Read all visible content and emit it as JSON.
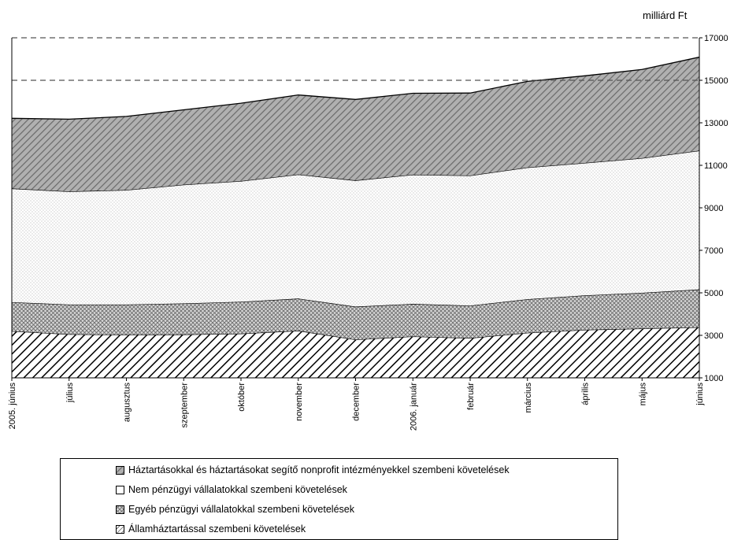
{
  "chart_data": {
    "type": "area",
    "stacked": true,
    "unit_label": "milliárd Ft",
    "categories": [
      "2005. június",
      "július",
      "augusztus",
      "szeptember",
      "október",
      "november",
      "december",
      "2006. január",
      "február",
      "március",
      "április",
      "május",
      "június"
    ],
    "ylim": [
      1000,
      17000
    ],
    "yticks": [
      1000,
      3000,
      5000,
      7000,
      9000,
      11000,
      13000,
      15000,
      17000
    ],
    "reference_lines": [
      15000,
      17000
    ],
    "grid": false,
    "legend_position": "bottom",
    "series": [
      {
        "name": "Államháztartással szembeni követelések",
        "values": [
          3200,
          3050,
          3030,
          3040,
          3080,
          3220,
          2800,
          2950,
          2870,
          3120,
          3260,
          3320,
          3380
        ],
        "pattern": "diag-wide",
        "color": "#ffffff"
      },
      {
        "name": "Egyéb pénzügyi vállalatokkal szembeni követelések",
        "values": [
          1360,
          1400,
          1420,
          1460,
          1500,
          1510,
          1550,
          1530,
          1530,
          1580,
          1620,
          1680,
          1780
        ],
        "pattern": "crosshatch",
        "color": "#d0d0d0"
      },
      {
        "name": "Nem pénzügyi vállalatokkal szembeni követelések",
        "values": [
          5350,
          5320,
          5390,
          5590,
          5680,
          5840,
          5940,
          6080,
          6120,
          6200,
          6230,
          6340,
          6530
        ],
        "pattern": "dots",
        "color": "#ffffff"
      },
      {
        "name": "Háztartásokkal és háztartásokat segítő nonprofit intézményekkel szembeni követelések",
        "values": [
          3300,
          3400,
          3460,
          3520,
          3660,
          3740,
          3810,
          3830,
          3880,
          4050,
          4100,
          4170,
          4400
        ],
        "pattern": "diag-dark",
        "color": "#909090"
      }
    ]
  },
  "legend": {
    "items": [
      {
        "label": "Háztartásokkal és háztartásokat segítő nonprofit intézményekkel szembeni követelések",
        "swatch": "diag-dark"
      },
      {
        "label": "Nem pénzügyi vállalatokkal szembeni követelések",
        "swatch": "plain"
      },
      {
        "label": "Egyéb pénzügyi vállalatokkal szembeni követelések",
        "swatch": "crosshatch"
      },
      {
        "label": "Államháztartással szembeni követelések",
        "swatch": "diag-light"
      }
    ]
  }
}
